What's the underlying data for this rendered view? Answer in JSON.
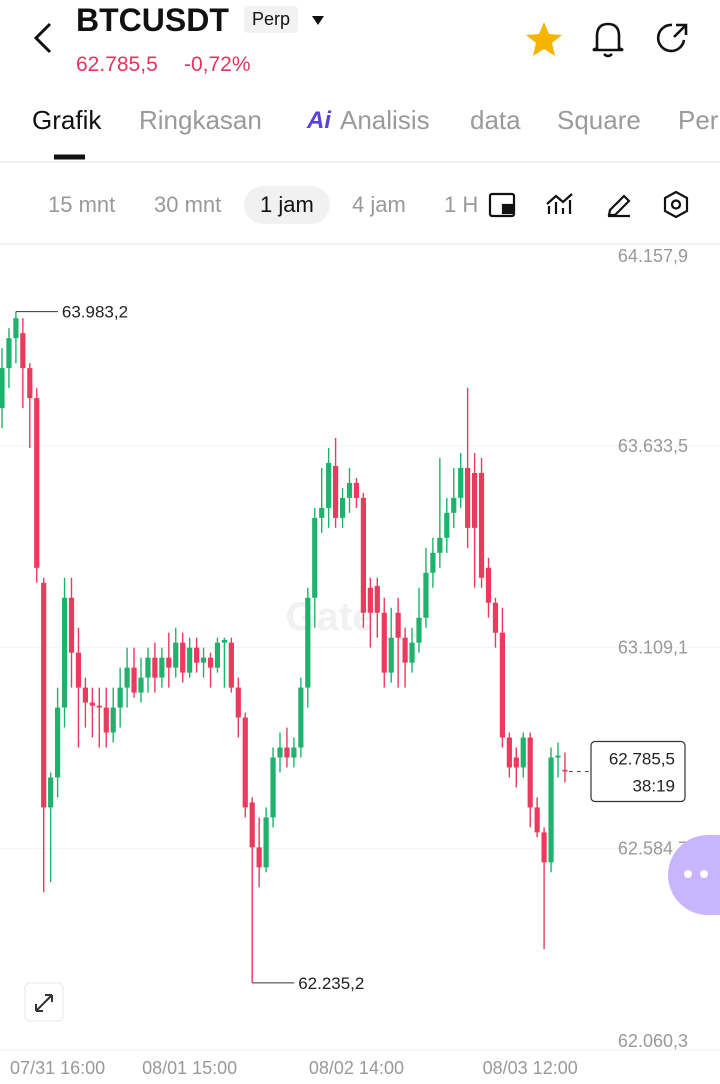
{
  "header": {
    "symbol": "BTCUSDT",
    "badge": "Perp",
    "price": "62.785,5",
    "change": "-0,72%"
  },
  "tabs": [
    "Grafik",
    "Ringkasan",
    "Analisis",
    "data",
    "Square",
    "Per"
  ],
  "ai_badge": "Ai",
  "intervals": [
    "15 mnt",
    "30 mnt",
    "1 jam",
    "4 jam",
    "1 H"
  ],
  "chart_data": {
    "type": "candlestick",
    "watermark": "Gate",
    "up_color": "#20b26c",
    "down_color": "#ea3a5e",
    "categories": [
      null,
      null,
      null,
      null,
      null,
      null,
      null,
      null,
      "07/31 16:00",
      null,
      null,
      null,
      null,
      null,
      null,
      null,
      null,
      null,
      null,
      null,
      null,
      null,
      null,
      null,
      null,
      null,
      null,
      "08/01 15:00",
      null,
      null,
      null,
      null,
      null,
      null,
      null,
      null,
      null,
      null,
      null,
      null,
      null,
      null,
      null,
      null,
      null,
      null,
      null,
      null,
      null,
      null,
      null,
      "08/02 14:00",
      null,
      null,
      null,
      null,
      null,
      null,
      null,
      null,
      null,
      null,
      null,
      null,
      null,
      null,
      null,
      null,
      null,
      null,
      null,
      null,
      null,
      null,
      null,
      null,
      "08/03 12:00",
      null,
      null,
      null,
      null,
      null
    ],
    "open": [
      63732,
      63836,
      63914,
      63927,
      63836,
      63758,
      63277,
      62692,
      62770,
      62952,
      63238,
      63095,
      63004,
      62965,
      62957,
      62952,
      62887,
      62952,
      63004,
      63056,
      62991,
      63030,
      63082,
      63030,
      63082,
      63056,
      63121,
      63043,
      63108,
      63069,
      63082,
      63056,
      63121,
      63121,
      63004,
      62926,
      62705,
      62588,
      62536,
      62666,
      62822,
      62848,
      62822,
      62848,
      63004,
      63238,
      63446,
      63472,
      63581,
      63446,
      63498,
      63537,
      63498,
      63264,
      63269,
      63199,
      63043,
      63199,
      63134,
      63069,
      63121,
      63186,
      63303,
      63355,
      63394,
      63459,
      63498,
      63576,
      63563,
      63563,
      63316,
      63225,
      63147,
      62874,
      62822,
      62796,
      62874,
      62692,
      62627,
      62549,
      62822,
      62790
    ],
    "high": [
      63888,
      63940,
      63983.2,
      63966,
      63849,
      63784,
      63290,
      62783,
      63004,
      63290,
      63290,
      63160,
      63030,
      63004,
      63004,
      63004,
      63004,
      63056,
      63108,
      63108,
      63082,
      63108,
      63121,
      63108,
      63147,
      63160,
      63147,
      63134,
      63134,
      63108,
      63095,
      63134,
      63134,
      63134,
      63030,
      62939,
      62718,
      62666,
      62692,
      62848,
      62887,
      62900,
      62874,
      63030,
      63264,
      63472,
      63576,
      63628,
      63654,
      63524,
      63576,
      63550,
      63511,
      63290,
      63290,
      63238,
      63212,
      63238,
      63160,
      63160,
      63264,
      63368,
      63394,
      63602,
      63498,
      63576,
      63615,
      63785,
      63615,
      63602,
      63342,
      63238,
      63212,
      62887,
      62848,
      62887,
      62887,
      62718,
      62640,
      62848,
      62861,
      62835
    ],
    "low": [
      63680,
      63784,
      63849,
      63732,
      63628,
      63277,
      62471,
      62497,
      62718,
      62900,
      63004,
      62848,
      62900,
      62874,
      62848,
      62848,
      62861,
      62900,
      62952,
      62978,
      62965,
      62991,
      62991,
      63004,
      63004,
      63030,
      63017,
      63030,
      63043,
      63030,
      63004,
      63043,
      63004,
      62991,
      62874,
      62666,
      62235.2,
      62484,
      62523,
      62640,
      62783,
      62796,
      62796,
      62822,
      62952,
      63160,
      63407,
      63420,
      63420,
      63420,
      63459,
      63472,
      63160,
      63108,
      63134,
      63004,
      63017,
      63004,
      63004,
      63043,
      63095,
      63160,
      63264,
      63316,
      63355,
      63420,
      63472,
      63368,
      63264,
      63264,
      63186,
      63108,
      62848,
      62770,
      62744,
      62770,
      62640,
      62614,
      62323,
      62523,
      62770,
      62757
    ],
    "close": [
      63836,
      63914,
      63966,
      63836,
      63758,
      63316,
      62692,
      62770,
      62952,
      63238,
      63095,
      63004,
      62965,
      62957,
      62952,
      62887,
      62952,
      63004,
      63056,
      62991,
      63030,
      63082,
      63030,
      63082,
      63056,
      63121,
      63043,
      63108,
      63069,
      63082,
      63056,
      63121,
      63128,
      63004,
      62926,
      62692,
      62588,
      62536,
      62666,
      62822,
      62848,
      62822,
      62848,
      63004,
      63238,
      63446,
      63472,
      63589,
      63446,
      63498,
      63537,
      63498,
      63199,
      63199,
      63199,
      63043,
      63134,
      63134,
      63069,
      63121,
      63186,
      63303,
      63355,
      63394,
      63459,
      63498,
      63576,
      63420,
      63420,
      63290,
      63225,
      63147,
      62874,
      62796,
      62796,
      62874,
      62692,
      62627,
      62549,
      62822,
      62827,
      62785.5
    ],
    "ylim": [
      62060.3,
      64157.9
    ],
    "yticks": [
      {
        "value": 62060.3,
        "label": "62.060,3"
      },
      {
        "value": 62584.7,
        "label": "62.584,7"
      },
      {
        "value": 63109.1,
        "label": "63.109,1"
      },
      {
        "value": 63633.5,
        "label": "63.633,5"
      },
      {
        "value": 64157.9,
        "label": "64.157,9"
      }
    ],
    "grid": true,
    "annotations": [
      {
        "value": 63983.2,
        "label": "63.983,2",
        "field": "high"
      },
      {
        "value": 62235.2,
        "label": "62.235,2",
        "field": "low"
      }
    ],
    "last_price": {
      "value": 62785.5,
      "label": "62.785,5",
      "countdown": "38:19"
    }
  }
}
